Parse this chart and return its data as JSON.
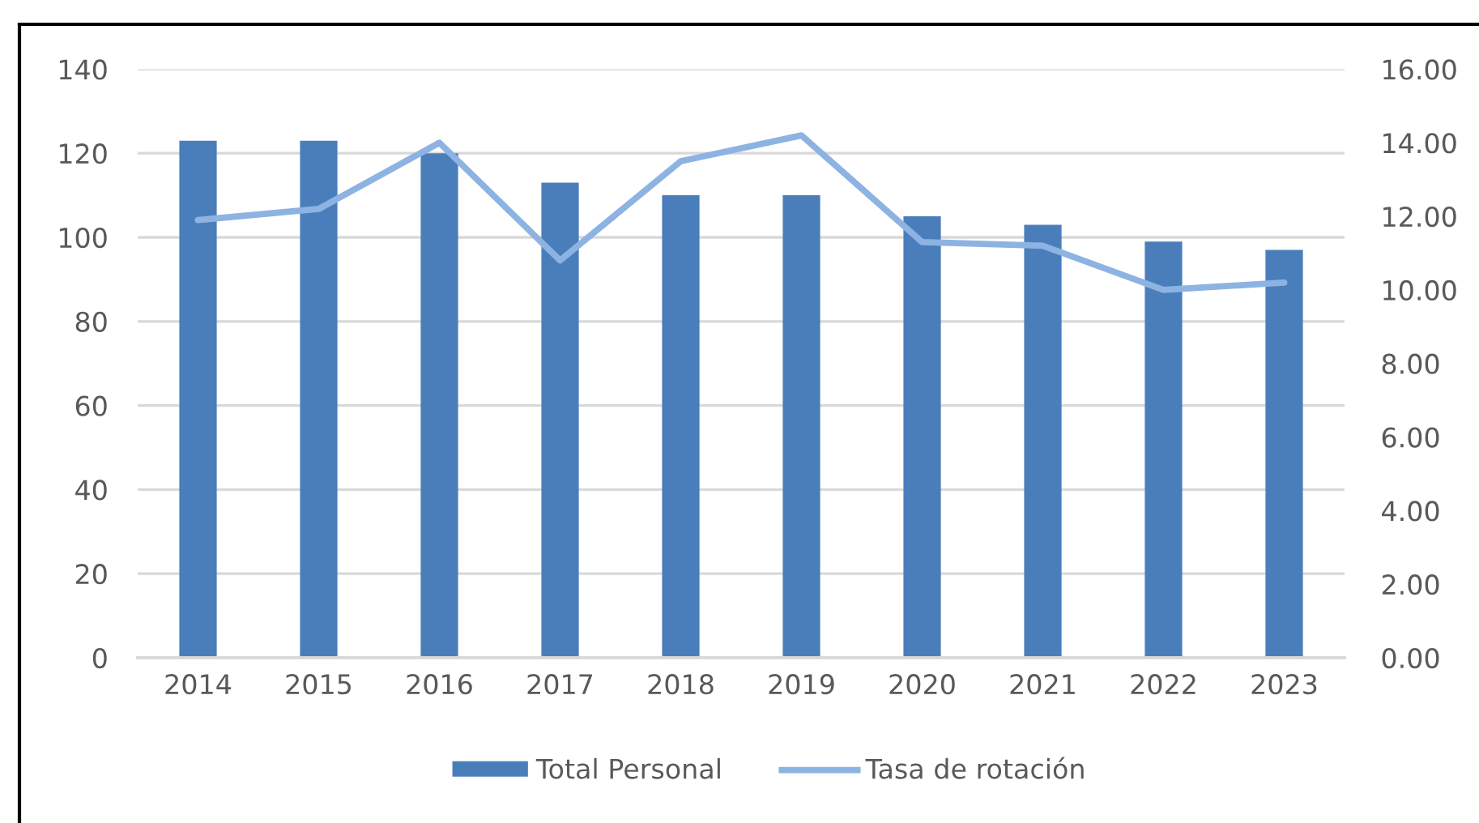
{
  "chart_data": {
    "type": "bar",
    "categories": [
      "2014",
      "2015",
      "2016",
      "2017",
      "2018",
      "2019",
      "2020",
      "2021",
      "2022",
      "2023"
    ],
    "series": [
      {
        "name": "Total Personal",
        "color": "#4a7ebb",
        "values": [
          123,
          123,
          120,
          113,
          110,
          110,
          105,
          103,
          99,
          97
        ]
      },
      {
        "name": "Tasa de rotación",
        "type": "line",
        "axis": "y2",
        "color": "#8db3e2",
        "values": [
          11.9,
          12.2,
          14.0,
          10.8,
          13.5,
          14.2,
          11.3,
          11.2,
          10.0,
          10.2
        ]
      }
    ],
    "ylim": [
      0,
      140
    ],
    "yticks": [
      0,
      20,
      40,
      60,
      80,
      100,
      120,
      140
    ],
    "y2lim": [
      0,
      16
    ],
    "y2ticks": [
      {
        "value": 0,
        "label": "0.00"
      },
      {
        "value": 2,
        "label": "2.00"
      },
      {
        "value": 4,
        "label": "4.00"
      },
      {
        "value": 6,
        "label": "6.00"
      },
      {
        "value": 8,
        "label": "8.00"
      },
      {
        "value": 10,
        "label": "10.00"
      },
      {
        "value": 12,
        "label": "12.00"
      },
      {
        "value": 14,
        "label": "14.00"
      },
      {
        "value": 16,
        "label": "16.00"
      }
    ],
    "grid": "y",
    "legend": "bottom"
  }
}
